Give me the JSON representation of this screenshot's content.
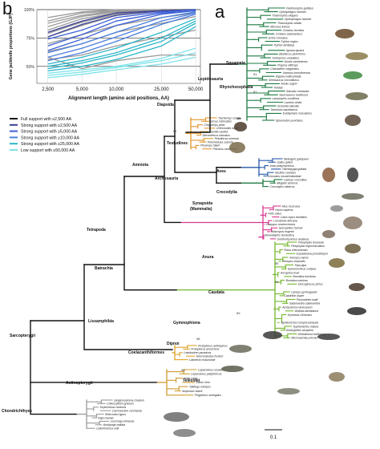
{
  "panels": {
    "b": "b",
    "a": "a"
  },
  "chart_data": {
    "type": "line",
    "ylabel": "Gene jackknife proportions (GJP)",
    "xlabel": "Alignment length (amino acid positions, AA)",
    "x_ticks": [
      "2,500",
      "5,000",
      "10,000",
      "25,000",
      "50,000"
    ],
    "x": [
      2500,
      5000,
      10000,
      25000,
      50000
    ],
    "y_ticks": [
      "100%",
      "75%",
      "50%"
    ],
    "y_tick_values": [
      100,
      75,
      50
    ],
    "ylim": [
      35,
      100
    ],
    "grid": true,
    "legend_position": "bottom",
    "legend": [
      {
        "label": "Full support with ≤2,500 AA",
        "color": "#111111"
      },
      {
        "label": "Strong support with ≥2,500 AA",
        "color": "#3a3f93"
      },
      {
        "label": "Strong support with ≥5,000 AA",
        "color": "#3c5fd6"
      },
      {
        "label": "Strong support with ≥10,000 AA",
        "color": "#4b7fdf"
      },
      {
        "label": "Strong support with ≥25,000 AA",
        "color": "#2bb6c9"
      },
      {
        "label": "Low support with ≥50,000 AA",
        "color": "#7fe3ea"
      }
    ],
    "series": [
      {
        "color": "#9a9a9a",
        "values": [
          93,
          98,
          100,
          100,
          100
        ]
      },
      {
        "color": "#9a9a9a",
        "values": [
          90,
          97,
          99,
          100,
          100
        ]
      },
      {
        "color": "#9a9a9a",
        "values": [
          88,
          95,
          99,
          100,
          100
        ]
      },
      {
        "color": "#9a9a9a",
        "values": [
          85,
          94,
          98,
          100,
          100
        ]
      },
      {
        "color": "#9a9a9a",
        "values": [
          82,
          92,
          97,
          100,
          100
        ]
      },
      {
        "color": "#9a9a9a",
        "values": [
          79,
          89,
          96,
          100,
          100
        ]
      },
      {
        "color": "#9a9a9a",
        "values": [
          76,
          86,
          95,
          99,
          100
        ]
      },
      {
        "color": "#9a9a9a",
        "values": [
          70,
          78,
          86,
          93,
          97
        ]
      },
      {
        "color": "#9a9a9a",
        "values": [
          63,
          70,
          80,
          88,
          94
        ]
      },
      {
        "color": "#9a9a9a",
        "values": [
          56,
          60,
          68,
          76,
          82
        ]
      },
      {
        "color": "#9a9a9a",
        "values": [
          58,
          48,
          55,
          60,
          60
        ]
      },
      {
        "color": "#3a3f93",
        "values": [
          80,
          90,
          97,
          99,
          100
        ]
      },
      {
        "color": "#3a3f93",
        "values": [
          76,
          87,
          95,
          99,
          100
        ]
      },
      {
        "color": "#3c5fd6",
        "values": [
          74,
          82,
          93,
          98,
          100
        ]
      },
      {
        "color": "#3c5fd6",
        "values": [
          68,
          78,
          90,
          97,
          99
        ]
      },
      {
        "color": "#3c5fd6",
        "values": [
          64,
          74,
          86,
          96,
          99
        ]
      },
      {
        "color": "#4b7fdf",
        "values": [
          62,
          70,
          80,
          93,
          98
        ]
      },
      {
        "color": "#4b7fdf",
        "values": [
          58,
          66,
          76,
          90,
          97
        ]
      },
      {
        "color": "#4b7fdf",
        "values": [
          55,
          62,
          72,
          87,
          96
        ]
      },
      {
        "color": "#2bb6c9",
        "values": [
          52,
          58,
          66,
          80,
          92
        ]
      },
      {
        "color": "#2bb6c9",
        "values": [
          50,
          55,
          62,
          75,
          90
        ]
      },
      {
        "color": "#2bb6c9",
        "values": [
          48,
          53,
          60,
          72,
          88
        ]
      },
      {
        "color": "#2bb6c9",
        "values": [
          46,
          50,
          56,
          68,
          85
        ]
      },
      {
        "color": "#7fe3ea",
        "values": [
          44,
          47,
          50,
          57,
          66
        ]
      },
      {
        "color": "#7fe3ea",
        "values": [
          42,
          45,
          49,
          55,
          62
        ]
      },
      {
        "color": "#7fe3ea",
        "values": [
          40,
          43,
          47,
          52,
          58
        ]
      }
    ]
  },
  "tree": {
    "scale_label": "0.1",
    "clades": [
      {
        "id": "squamata",
        "label": "Squamata"
      },
      {
        "id": "rhyncho",
        "label": "Rhynchocephalia"
      },
      {
        "id": "lepido",
        "label": "Lepidosauria"
      },
      {
        "id": "diapsida",
        "label": "Diapsida"
      },
      {
        "id": "testudines",
        "label": "Testudines"
      },
      {
        "id": "aves",
        "label": "Aves"
      },
      {
        "id": "archo",
        "label": "Archosauria"
      },
      {
        "id": "croco",
        "label": "Crocodylia"
      },
      {
        "id": "amniota",
        "label": "Amniota"
      },
      {
        "id": "synapsida",
        "label": "Synapsida"
      },
      {
        "id": "mammalia",
        "label": "(Mammalia)"
      },
      {
        "id": "tetrapoda",
        "label": "Tetrapoda"
      },
      {
        "id": "batrachia",
        "label": "Batrachia"
      },
      {
        "id": "anura",
        "label": "Anura"
      },
      {
        "id": "caudata",
        "label": "Caudata"
      },
      {
        "id": "lissamph",
        "label": "Lissamphibia"
      },
      {
        "id": "gymno",
        "label": "Gymnophiona"
      },
      {
        "id": "sarcop",
        "label": "Sarcopterygii"
      },
      {
        "id": "dipnoi",
        "label": "Dipnoi"
      },
      {
        "id": "coela",
        "label": "Coelacanthiformes"
      },
      {
        "id": "teleostei",
        "label": "Teleostei"
      },
      {
        "id": "actino",
        "label": "Actinopterygii"
      },
      {
        "id": "chondr",
        "label": "Chondrichthyes"
      }
    ],
    "groups": [
      {
        "color": "#1f7a43",
        "tips": [
          "Pantherophis guttatus",
          "Ophiophagus hannah",
          "Thamnophis elegans",
          "Ophiophagus hannah",
          "Thamnophis sirtalis",
          "Micrurus fulvius",
          "Crotalus horridus",
          "Crotalus adamanteus",
          "Echis coloratus",
          "Python regius",
          "Python bivittatus",
          "Iguana iguana",
          "Basiliscus plumifrons",
          "Sceloporus undulatus",
          "Anolis carolinensis",
          "Pogona vitticeps",
          "Chamaeleo calyptratus",
          "Varanus komodoensis",
          "Elgaria multicarinata",
          "Shinisaurus crocodilurus",
          "Anolis sagrei",
          "Teiidae",
          "Salvator merianae",
          "Saurosaurus basiliscus",
          "Lamprophis corallinus",
          "Lacerta viridis",
          "Scincella lateralis",
          "Tarentola mauritanica",
          "Eublepharis macularius",
          "Sphenodon punctatus"
        ]
      },
      {
        "color": "#e0962c",
        "tips": [
          "Trachemys scripta",
          "Emys orbicularis",
          "Chrysemys picta",
          "Chelonoidis nigra",
          "Caretta caretta",
          "Sternotherus odoratus",
          "Pelodiscus sinensis",
          "Pelomedusa subrufa",
          "Phrynops hilarii",
          "Pelusios castaneus"
        ]
      },
      {
        "color": "#2a5aa8",
        "tips": [
          "Meleagris gallopavo",
          "Gallus gallus",
          "Anas platyrhynchos",
          "Taeniopygia guttata",
          "Struthio camelus",
          "Dromaius novaehollandiae"
        ]
      },
      {
        "color": "#1f7a43",
        "tips": [
          "Caiman crocodilus",
          "Alligator sinensis",
          "Crocodylus niloticus"
        ]
      },
      {
        "color": "#d8388f",
        "tips": [
          "Mus musculus",
          "Homo sapiens",
          "Felis catus",
          "Canis lupus familiaris",
          "Loxodonta africana",
          "Dasypus novemcinctus",
          "Sarcophilus harrisii",
          "Macropus eugenii",
          "Monodelphis domestica",
          "Ornithorhynchus anatinus"
        ]
      },
      {
        "color": "#72b62c",
        "tips": [
          "Pelophylax lessonae",
          "Pelophylax nigromaculatus",
          "Rana chensinensis",
          "Espadarana prosoblepon",
          "Xenopus laevis",
          "Xenopus tropicalis",
          "Pipa pipa",
          "Hymenochirus curtipes",
          "Ascaphus truei",
          "Bombina bombina",
          "Bombina maxima",
          "Discoglossus pictus",
          "Cynops pyrrhogaster",
          "Calotriton asper",
          "Pleurodeles waltl",
          "Salamandra salamandra",
          "Ambystoma mexicanum",
          "Andrias davidianus",
          "Hynobius chinensis",
          "Typhlonectes compressicauda",
          "Typhlonectes natans",
          "Geotrypetes seraphini",
          "Rhinatrema bivittatum",
          "Microcaecilia unicolor"
        ]
      },
      {
        "color": "#e0a12c",
        "tips": [
          "Protopterus aethiopicus",
          "Protopterus annectens",
          "Lepidosiren paradoxa",
          "Neoceratodus forsteri",
          "Latimeria chalumnae"
        ]
      },
      {
        "color": "#cf9a30",
        "tips": [
          "Lepisosteus oculatus",
          "Lepisosteus platyrhincus",
          "Amia calva",
          "Danio rerio",
          "Takifugu rubripes",
          "Acipenser baerii",
          "Polypterus senegalus"
        ]
      },
      {
        "color": "#9a9a9a",
        "tips": [
          "Ginglymostoma cirratum",
          "Chiloscyllium griseum",
          "Scyliorhinus canicula",
          "Carcharodon carcharias",
          "Rhincodon typus",
          "Raja clavata",
          "Leucoraja erinacea",
          "Amblyraja radiata",
          "Callorhinchus milii"
        ]
      }
    ],
    "bootstraps": [
      "51",
      "87",
      "51",
      "95",
      "91",
      "89",
      "98",
      "95"
    ]
  }
}
